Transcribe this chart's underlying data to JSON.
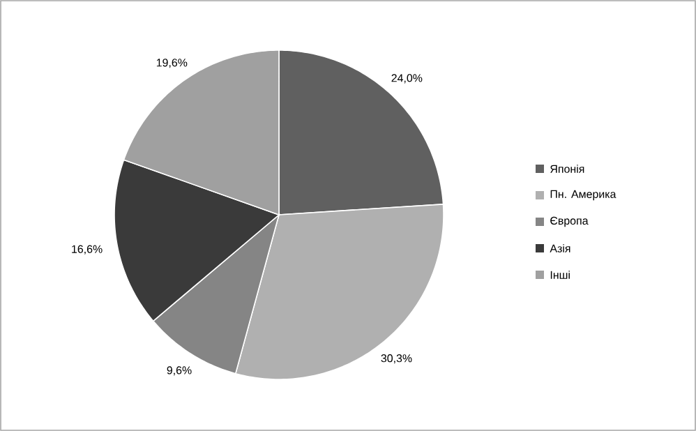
{
  "chart_data": {
    "type": "pie",
    "categories": [
      "Японія",
      "Пн. Америка",
      "Європа",
      "Азія",
      "Інші"
    ],
    "values": [
      24.0,
      30.3,
      9.6,
      16.6,
      19.6
    ],
    "value_labels": [
      "24,0%",
      "30,3%",
      "9,6%",
      "16,6%",
      "19,6%"
    ],
    "colors": [
      "#606060",
      "#b0b0b0",
      "#858585",
      "#3a3a3a",
      "#a0a0a0"
    ],
    "legend": "right"
  }
}
